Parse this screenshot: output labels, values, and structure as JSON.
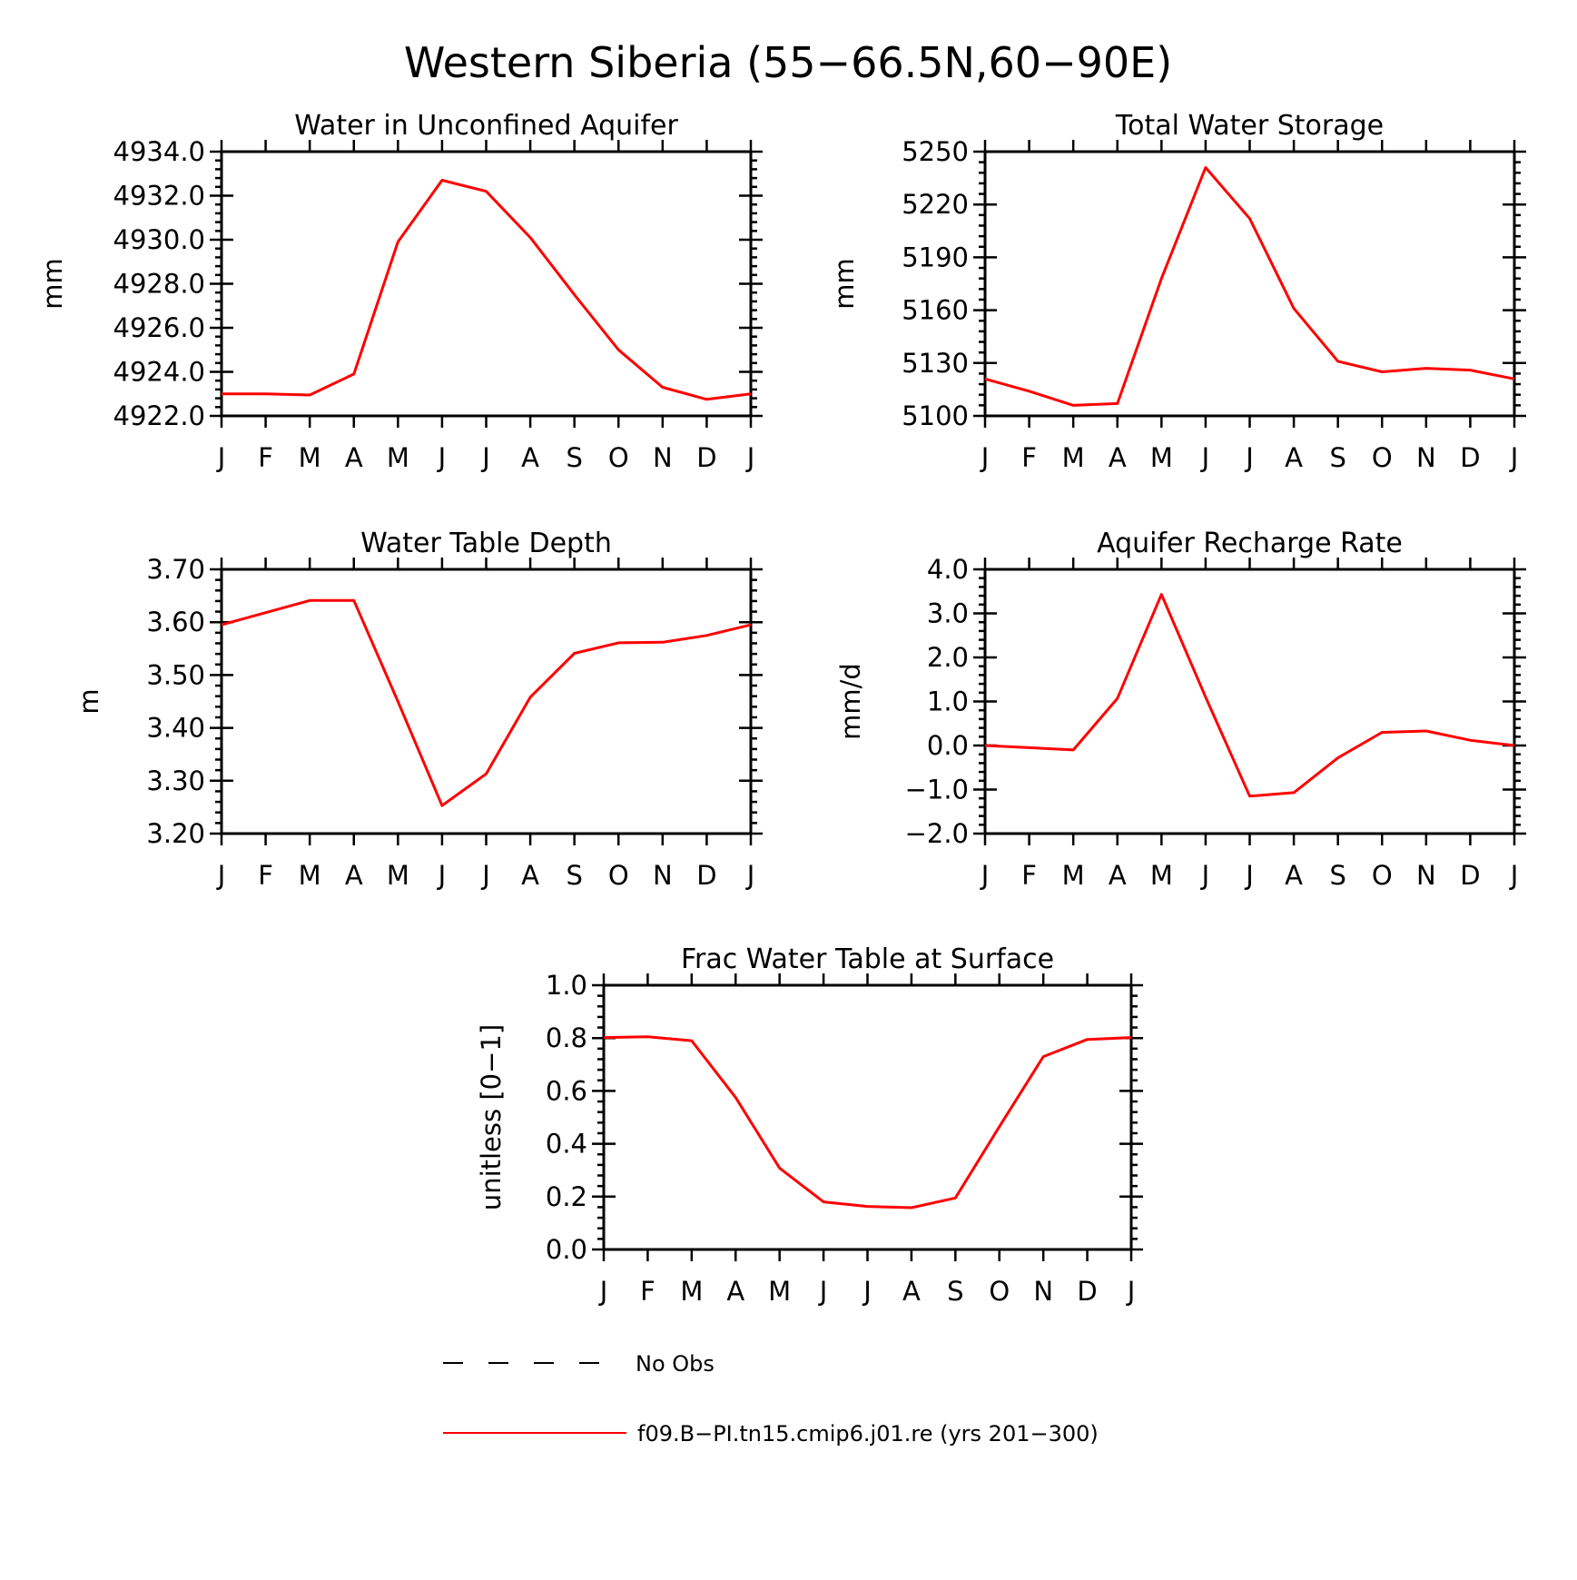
{
  "title": "Western Siberia (55−66.5N,60−90E)",
  "colors": {
    "model": "#ff0000",
    "obs": "#000000"
  },
  "legend": {
    "obs_label": "No Obs",
    "model_label": "f09.B−PI.tn15.cmip6.j01.re (yrs 201−300)"
  },
  "chart_data": [
    {
      "type": "line",
      "title": "Water in Unconfined Aquifer",
      "ylabel": "mm",
      "ylim": [
        4922,
        4934
      ],
      "yticks": [
        "4922.0",
        "4924.0",
        "4926.0",
        "4928.0",
        "4930.0",
        "4932.0",
        "4934.0"
      ],
      "x": [
        "J",
        "F",
        "M",
        "A",
        "M",
        "J",
        "J",
        "A",
        "S",
        "O",
        "N",
        "D",
        "J"
      ],
      "series": [
        {
          "name": "f09.B−PI.tn15.cmip6.j01.re (yrs 201−300)",
          "values": [
            4923.0,
            4923.0,
            4922.95,
            4923.9,
            4929.9,
            4932.7,
            4932.2,
            4930.1,
            4927.5,
            4925.0,
            4923.3,
            4922.75,
            4923.0
          ]
        }
      ]
    },
    {
      "type": "line",
      "title": "Total Water Storage",
      "ylabel": "mm",
      "ylim": [
        5100,
        5250
      ],
      "yticks": [
        "5100",
        "5130",
        "5160",
        "5190",
        "5220",
        "5250"
      ],
      "x": [
        "J",
        "F",
        "M",
        "A",
        "M",
        "J",
        "J",
        "A",
        "S",
        "O",
        "N",
        "D",
        "J"
      ],
      "series": [
        {
          "name": "f09.B−PI.tn15.cmip6.j01.re (yrs 201−300)",
          "values": [
            5121,
            5114,
            5106,
            5107,
            5178,
            5241,
            5212,
            5161,
            5131,
            5125,
            5127,
            5126,
            5121
          ]
        }
      ]
    },
    {
      "type": "line",
      "title": "Water Table Depth",
      "ylabel": "m",
      "ylim": [
        3.2,
        3.7
      ],
      "yticks": [
        "3.20",
        "3.30",
        "3.40",
        "3.50",
        "3.60",
        "3.70"
      ],
      "x": [
        "J",
        "F",
        "M",
        "A",
        "M",
        "J",
        "J",
        "A",
        "S",
        "O",
        "N",
        "D",
        "J"
      ],
      "series": [
        {
          "name": "f09.B−PI.tn15.cmip6.j01.re (yrs 201−300)",
          "values": [
            3.595,
            3.618,
            3.641,
            3.641,
            3.45,
            3.253,
            3.313,
            3.458,
            3.541,
            3.561,
            3.562,
            3.575,
            3.595
          ]
        }
      ]
    },
    {
      "type": "line",
      "title": "Aquifer Recharge Rate",
      "ylabel": "mm/d",
      "ylim": [
        -2,
        4
      ],
      "yticks": [
        "−2.0",
        "−1.0",
        "0.0",
        "1.0",
        "2.0",
        "3.0",
        "4.0"
      ],
      "x": [
        "J",
        "F",
        "M",
        "A",
        "M",
        "J",
        "J",
        "A",
        "S",
        "O",
        "N",
        "D",
        "J"
      ],
      "series": [
        {
          "name": "f09.B−PI.tn15.cmip6.j01.re (yrs 201−300)",
          "values": [
            0.0,
            -0.05,
            -0.1,
            1.07,
            3.43,
            1.1,
            -1.15,
            -1.07,
            -0.28,
            0.3,
            0.33,
            0.12,
            0.0
          ]
        }
      ]
    },
    {
      "type": "line",
      "title": "Frac Water Table at Surface",
      "ylabel": "unitless [0−1]",
      "ylim": [
        0,
        1
      ],
      "yticks": [
        "0.0",
        "0.2",
        "0.4",
        "0.6",
        "0.8",
        "1.0"
      ],
      "x": [
        "J",
        "F",
        "M",
        "A",
        "M",
        "J",
        "J",
        "A",
        "S",
        "O",
        "N",
        "D",
        "J"
      ],
      "series": [
        {
          "name": "f09.B−PI.tn15.cmip6.j01.re (yrs 201−300)",
          "values": [
            0.802,
            0.805,
            0.79,
            0.575,
            0.308,
            0.18,
            0.163,
            0.158,
            0.195,
            0.465,
            0.73,
            0.795,
            0.802
          ]
        }
      ]
    }
  ]
}
